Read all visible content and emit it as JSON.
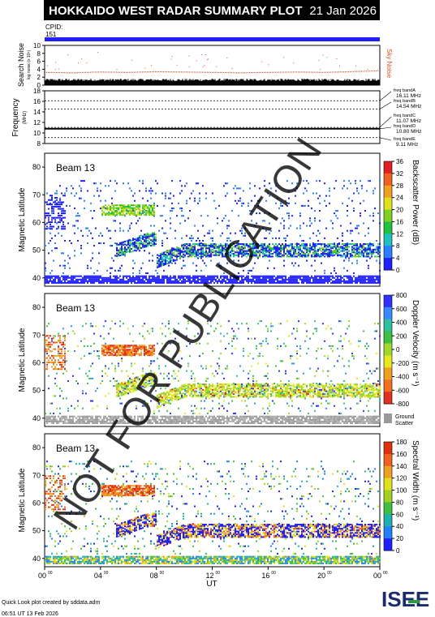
{
  "header": {
    "title": "HOKKAIDO WEST RADAR SUMMARY PLOT",
    "date": "21 Jan 2026",
    "cpid_label": "CPID:",
    "cpid_value": "151"
  },
  "watermark": "NOT FOR PUBLICATION",
  "footer": {
    "credit": "Quick Look plot created by sddata.adm",
    "timestamp": "06:51 UT 13 Feb 2026",
    "logo": "ISEE"
  },
  "colors": {
    "band": "#2020ff",
    "noise_dots": "#e05020",
    "freq_line": "#000000"
  },
  "chart_data": [
    {
      "type": "scatter",
      "panel": "search-noise",
      "ylabel": "Search Noise",
      "ylabel_units": "log noise (x 10⁶)",
      "side_label": "Sky Noise",
      "ylim": [
        0,
        10
      ],
      "yticks": [
        0,
        2,
        4,
        6,
        8,
        10
      ],
      "series": [
        {
          "name": "Sky Noise",
          "x": [
            0,
            2,
            4,
            6,
            8,
            10,
            12,
            14,
            16,
            18,
            20,
            22,
            24
          ],
          "values": [
            3.2,
            3.1,
            3.3,
            3.2,
            3.4,
            3.3,
            3.2,
            3.1,
            3.2,
            3.3,
            3.2,
            3.4,
            3.6
          ]
        }
      ]
    },
    {
      "type": "line",
      "panel": "frequency",
      "ylabel": "Frequency",
      "ylabel_units": "(MHz)",
      "ylim": [
        8,
        18
      ],
      "yticks": [
        8,
        10,
        12,
        14,
        16,
        18
      ],
      "bands": [
        {
          "name": "freq bandA",
          "value": 16.11,
          "label": "16.11 MHz"
        },
        {
          "name": "freq bandB",
          "value": 14.54,
          "label": "14.54 MHz"
        },
        {
          "name": "freq bandC",
          "value": 11.07,
          "label": "11.07 MHz"
        },
        {
          "name": "freq bandD",
          "value": 10.8,
          "label": "10.80 MHz"
        },
        {
          "name": "freq bandE",
          "value": 9.11,
          "label": "9.11 MHz"
        }
      ],
      "series": [
        {
          "x": [
            0,
            24
          ],
          "values": [
            10.8,
            10.8
          ]
        }
      ]
    },
    {
      "type": "heatmap",
      "panel": "power",
      "beam": "Beam 13",
      "ylabel": "Magnetic Latitude",
      "xlabel": "",
      "ylim": [
        37,
        85
      ],
      "yticks": [
        40,
        50,
        60,
        70,
        80
      ],
      "colorbar": {
        "label": "Backscatter Power (dB)",
        "ticks": [
          "0",
          "4",
          "8",
          "12",
          "16",
          "20",
          "24",
          "28",
          "32",
          "36"
        ]
      }
    },
    {
      "type": "heatmap",
      "panel": "velocity",
      "beam": "Beam 13",
      "ylabel": "Magnetic Latitude",
      "ylim": [
        37,
        85
      ],
      "yticks": [
        40,
        50,
        60,
        70,
        80
      ],
      "colorbar": {
        "label": "Doppler Velocity (m s⁻¹)",
        "ticks": [
          "800",
          "600",
          "400",
          "200",
          "0",
          "-200",
          "-400",
          "-600",
          "-800"
        ],
        "ground_label": "Ground",
        "scatter_label": "Scatter"
      }
    },
    {
      "type": "heatmap",
      "panel": "width",
      "beam": "Beam 13",
      "ylabel": "Magnetic Latitude",
      "xlabel": "UT",
      "ylim": [
        37,
        85
      ],
      "yticks": [
        40,
        50,
        60,
        70,
        80
      ],
      "xticks": [
        "00",
        "04",
        "08",
        "12",
        "16",
        "20",
        "00"
      ],
      "xtick_sup": "00",
      "colorbar": {
        "label": "Spectral Width (m s⁻¹)",
        "ticks": [
          "0",
          "20",
          "40",
          "60",
          "80",
          "100",
          "120",
          "140",
          "160",
          "180"
        ]
      }
    }
  ]
}
